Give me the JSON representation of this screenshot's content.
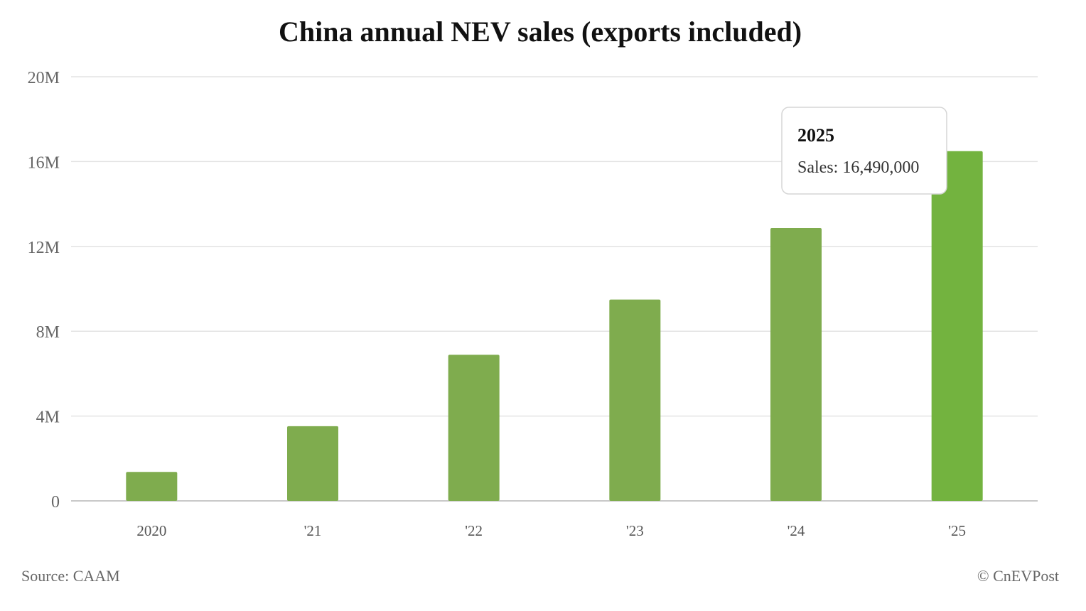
{
  "chart_data": {
    "type": "bar",
    "title": "China annual NEV sales (exports included)",
    "categories": [
      "2020",
      "'21",
      "'22",
      "'23",
      "'24",
      "'25"
    ],
    "series": [
      {
        "values": [
          1367000,
          3521000,
          6887000,
          9495000,
          12866000,
          16490000
        ]
      }
    ],
    "ylim": [
      0,
      20000000
    ],
    "yticks": [
      0,
      4000000,
      8000000,
      12000000,
      16000000,
      20000000
    ],
    "ytick_labels": [
      "0",
      "4M",
      "8M",
      "12M",
      "16M",
      "20M"
    ],
    "grid": true,
    "bar_color": "#7fac4e",
    "highlight_color": "#73b33f",
    "highlight_index": 5
  },
  "tooltip": {
    "title": "2025",
    "label": "Sales: 16,490,000"
  },
  "footer": {
    "source": "Source: CAAM",
    "credit": "© CnEVPost"
  }
}
